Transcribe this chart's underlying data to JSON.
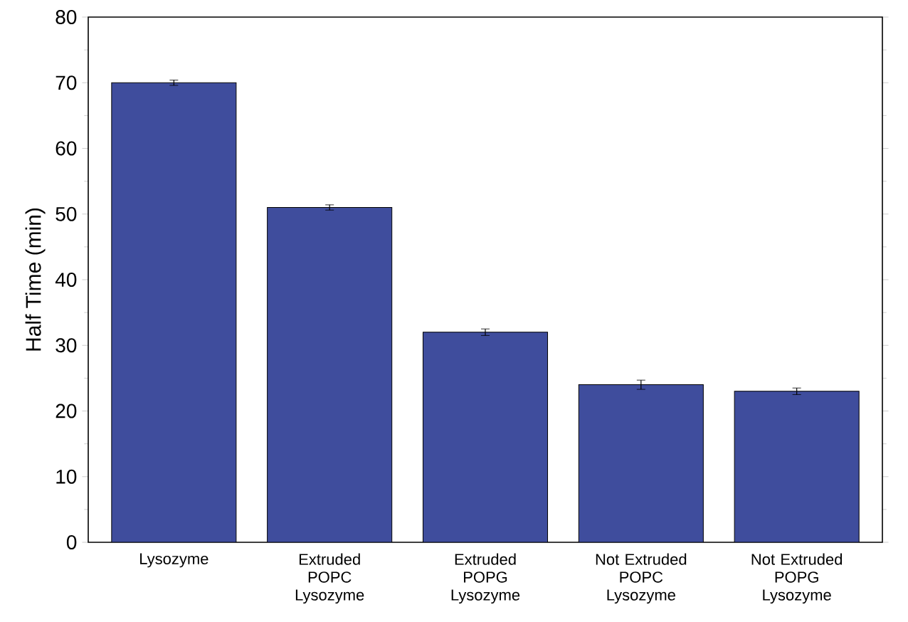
{
  "chart_data": {
    "type": "bar",
    "ylabel": "Half Time (min)",
    "categories": [
      "Lysozyme",
      "Extruded POPC Lysozyme",
      "Extruded POPG Lysozyme",
      "Not Extruded POPC Lysozyme",
      "Not Extruded POPG Lysozyme"
    ],
    "values": [
      70,
      51,
      32,
      24,
      23
    ],
    "errors": [
      0.4,
      0.4,
      0.5,
      0.7,
      0.5
    ],
    "color": "#3f4d9d",
    "ylim": [
      0,
      80
    ],
    "yticks": [
      0,
      10,
      20,
      30,
      40,
      50,
      60,
      70,
      80
    ],
    "grid": false
  }
}
